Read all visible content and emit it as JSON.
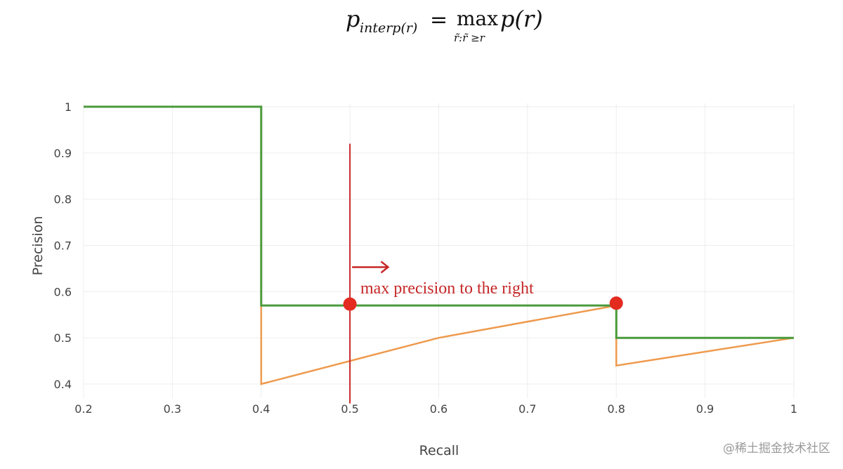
{
  "formula": {
    "lhs_symbol": "p",
    "lhs_subscript": "interp(r)",
    "equals": "=",
    "operator": "max",
    "operator_subscript": "r̃:r̃ ≥r",
    "rhs": "p(r)"
  },
  "annotation": {
    "text": "max precision to the right",
    "color": "#c62828"
  },
  "watermark": "@稀土掘金技术社区",
  "colors": {
    "interpolated": "#4a9a3c",
    "raw": "#ee9a4d",
    "marker": "#e32b1f",
    "vline": "#c62828",
    "grid": "#eeeeee"
  },
  "chart_data": {
    "type": "line",
    "title": "",
    "xlabel": "Recall",
    "ylabel": "Precision",
    "xlim": [
      0.2,
      1.0
    ],
    "ylim": [
      0.4,
      1.0
    ],
    "grid": true,
    "x_ticks": [
      {
        "value": 0.2,
        "label": "0.2"
      },
      {
        "value": 0.3,
        "label": "0.3"
      },
      {
        "value": 0.4,
        "label": "0.4"
      },
      {
        "value": 0.5,
        "label": "0.5"
      },
      {
        "value": 0.6,
        "label": "0.6"
      },
      {
        "value": 0.7,
        "label": "0.7"
      },
      {
        "value": 0.8,
        "label": "0.8"
      },
      {
        "value": 0.9,
        "label": "0.9"
      },
      {
        "value": 1.0,
        "label": "1"
      }
    ],
    "y_ticks": [
      {
        "value": 0.4,
        "label": "0.4"
      },
      {
        "value": 0.5,
        "label": "0.5"
      },
      {
        "value": 0.6,
        "label": "0.6"
      },
      {
        "value": 0.7,
        "label": "0.7"
      },
      {
        "value": 0.8,
        "label": "0.8"
      },
      {
        "value": 0.9,
        "label": "0.9"
      },
      {
        "value": 1.0,
        "label": "1"
      }
    ],
    "series": [
      {
        "key": "raw",
        "color": "#ee9a4d",
        "points": [
          [
            0.4,
            0.57
          ],
          [
            0.4,
            0.4
          ],
          [
            0.6,
            0.5
          ],
          [
            0.8,
            0.57
          ],
          [
            0.8,
            0.44
          ],
          [
            1.0,
            0.5
          ]
        ]
      },
      {
        "key": "interpolated",
        "color": "#4a9a3c",
        "points": [
          [
            0.2,
            1.0
          ],
          [
            0.4,
            1.0
          ],
          [
            0.4,
            0.57
          ],
          [
            0.8,
            0.57
          ],
          [
            0.8,
            0.5
          ],
          [
            1.0,
            0.5
          ]
        ]
      }
    ],
    "markers": [
      {
        "x": 0.5,
        "y": 0.573
      },
      {
        "x": 0.8,
        "y": 0.575
      }
    ],
    "vertical_line": {
      "x": 0.5,
      "y_top": 0.92,
      "y_bottom": 0.358
    },
    "arrow": {
      "x_start": 0.5,
      "x_end": 0.543,
      "y": 0.653
    }
  }
}
